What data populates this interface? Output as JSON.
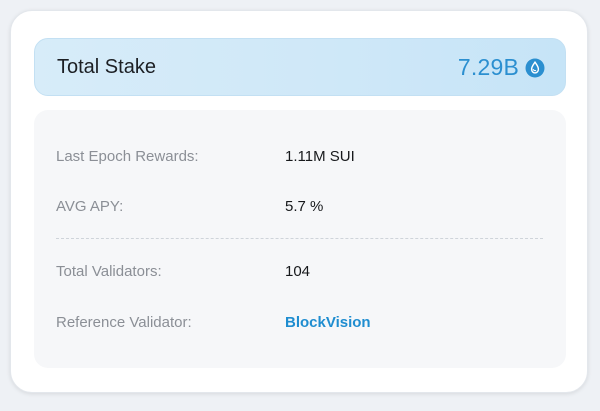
{
  "total_stake": {
    "label": "Total Stake",
    "value": "7.29B",
    "icon": "sui-drop-icon",
    "accent_color": "#2b8fd0"
  },
  "details": {
    "rows": [
      {
        "label": "Last Epoch Rewards:",
        "value": "1.11M SUI"
      },
      {
        "label": "AVG APY:",
        "value": "5.7 %"
      },
      {
        "label": "Total Validators:",
        "value": "104"
      },
      {
        "label": "Reference Validator:",
        "value": "BlockVision"
      }
    ]
  }
}
